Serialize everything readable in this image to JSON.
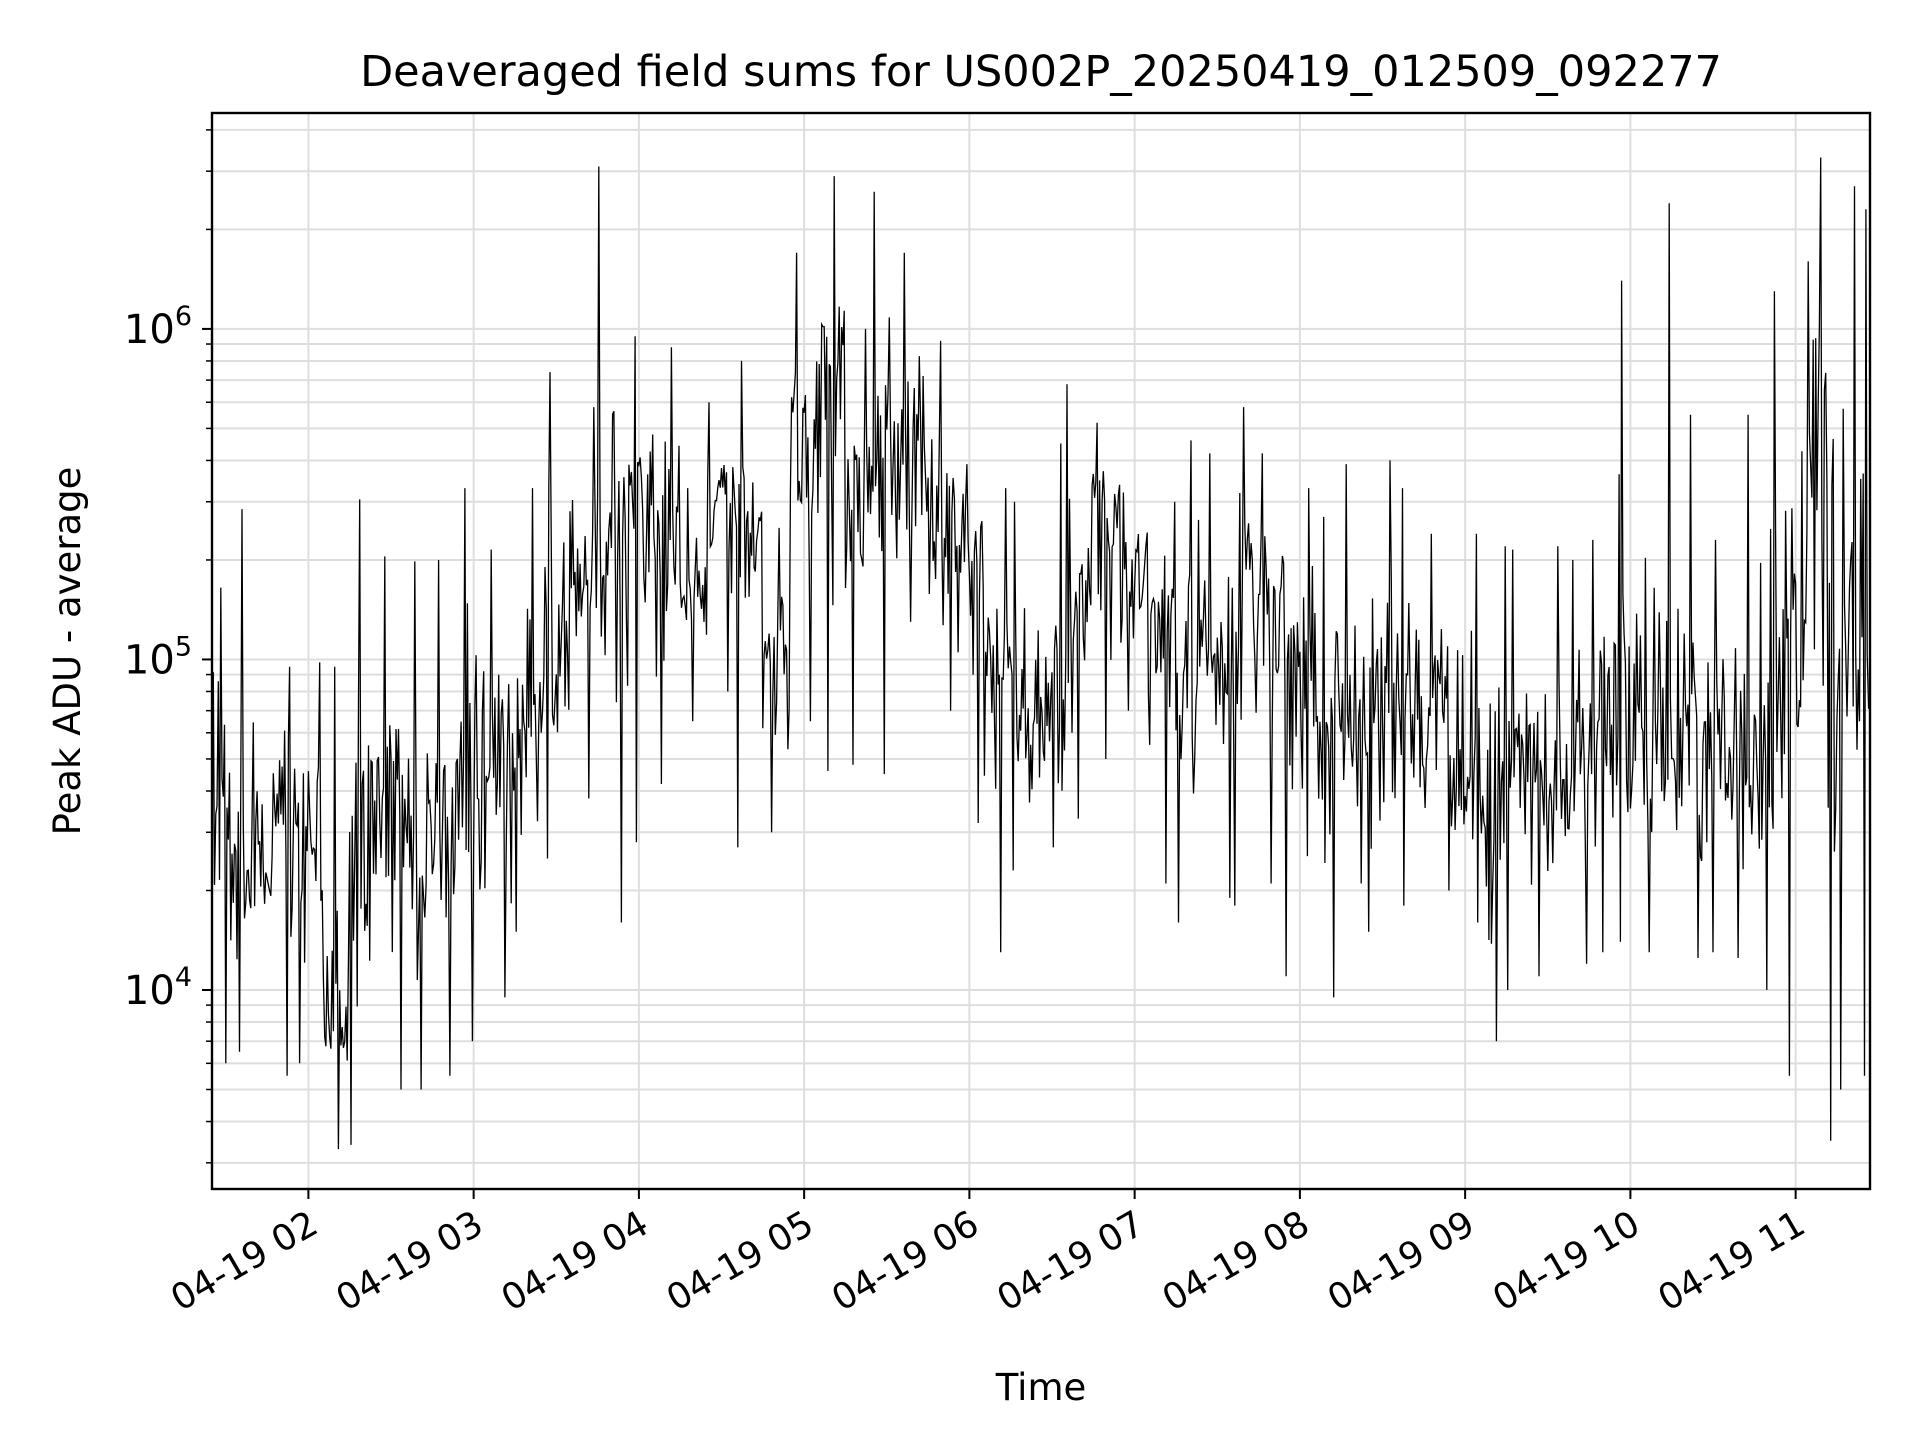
{
  "chart_data": {
    "type": "line",
    "title": "Deaveraged field sums for US002P_20250419_012509_092277",
    "xlabel": "Time",
    "ylabel": "Peak ADU - average",
    "y_scale": "log",
    "grid": true,
    "xlim": [
      "2025-04-19 01:25",
      "2025-04-19 11:27"
    ],
    "ylim": [
      2500,
      4500000
    ],
    "x_ticks": [
      {
        "value": "2025-04-19 02:00",
        "label": "04-19 02"
      },
      {
        "value": "2025-04-19 03:00",
        "label": "04-19 03"
      },
      {
        "value": "2025-04-19 04:00",
        "label": "04-19 04"
      },
      {
        "value": "2025-04-19 05:00",
        "label": "04-19 05"
      },
      {
        "value": "2025-04-19 06:00",
        "label": "04-19 06"
      },
      {
        "value": "2025-04-19 07:00",
        "label": "04-19 07"
      },
      {
        "value": "2025-04-19 08:00",
        "label": "04-19 08"
      },
      {
        "value": "2025-04-19 09:00",
        "label": "04-19 09"
      },
      {
        "value": "2025-04-19 10:00",
        "label": "04-19 10"
      },
      {
        "value": "2025-04-19 11:00",
        "label": "04-19 11"
      }
    ],
    "y_ticks": [
      {
        "value": 10000,
        "base": "10",
        "exp": "4"
      },
      {
        "value": 100000,
        "base": "10",
        "exp": "5"
      },
      {
        "value": 1000000,
        "base": "10",
        "exp": "6"
      }
    ],
    "series": [
      {
        "color": "#000000",
        "x": [
          "2025-04-19 01:25",
          "2025-04-19 01:35",
          "2025-04-19 01:45",
          "2025-04-19 01:55",
          "2025-04-19 02:05",
          "2025-04-19 02:15",
          "2025-04-19 02:25",
          "2025-04-19 02:35",
          "2025-04-19 02:45",
          "2025-04-19 02:55",
          "2025-04-19 03:05",
          "2025-04-19 03:15",
          "2025-04-19 03:25",
          "2025-04-19 03:35",
          "2025-04-19 03:45",
          "2025-04-19 03:55",
          "2025-04-19 04:05",
          "2025-04-19 04:15",
          "2025-04-19 04:25",
          "2025-04-19 04:35",
          "2025-04-19 04:45",
          "2025-04-19 04:55",
          "2025-04-19 05:05",
          "2025-04-19 05:15",
          "2025-04-19 05:25",
          "2025-04-19 05:35",
          "2025-04-19 05:45",
          "2025-04-19 05:55",
          "2025-04-19 06:05",
          "2025-04-19 06:15",
          "2025-04-19 06:25",
          "2025-04-19 06:35",
          "2025-04-19 06:45",
          "2025-04-19 06:55",
          "2025-04-19 07:05",
          "2025-04-19 07:15",
          "2025-04-19 07:25",
          "2025-04-19 07:35",
          "2025-04-19 07:45",
          "2025-04-19 07:55",
          "2025-04-19 08:05",
          "2025-04-19 08:15",
          "2025-04-19 08:25",
          "2025-04-19 08:35",
          "2025-04-19 08:45",
          "2025-04-19 08:55",
          "2025-04-19 09:05",
          "2025-04-19 09:15",
          "2025-04-19 09:25",
          "2025-04-19 09:35",
          "2025-04-19 09:45",
          "2025-04-19 09:55",
          "2025-04-19 10:05",
          "2025-04-19 10:15",
          "2025-04-19 10:25",
          "2025-04-19 10:35",
          "2025-04-19 10:45",
          "2025-04-19 10:55",
          "2025-04-19 11:05",
          "2025-04-19 11:15",
          "2025-04-19 11:25"
        ],
        "y": [
          30000,
          25000,
          35000,
          30000,
          8000,
          20000,
          40000,
          25000,
          30000,
          40000,
          50000,
          70000,
          90000,
          200000,
          250000,
          350000,
          250000,
          150000,
          300000,
          250000,
          100000,
          400000,
          700000,
          350000,
          400000,
          500000,
          300000,
          250000,
          100000,
          70000,
          60000,
          150000,
          300000,
          200000,
          130000,
          90000,
          100000,
          140000,
          150000,
          90000,
          60000,
          70000,
          80000,
          70000,
          70000,
          40000,
          35000,
          45000,
          40000,
          50000,
          60000,
          65000,
          60000,
          55000,
          50000,
          45000,
          60000,
          110000,
          300000,
          150000,
          80000
        ],
        "y_low": [
          6000,
          6500,
          5500,
          6000,
          3300,
          3400,
          5000,
          5000,
          5500,
          7000,
          9500,
          15000,
          25000,
          38000,
          16000,
          28000,
          42000,
          65000,
          80000,
          27000,
          30000,
          65000,
          46000,
          48000,
          45000,
          130000,
          70000,
          32000,
          13000,
          23000,
          27000,
          33000,
          50000,
          70000,
          21000,
          16000,
          19000,
          18000,
          21000,
          11000,
          9500,
          21000,
          15000,
          18000,
          20000,
          16000,
          7000,
          10000,
          11000,
          12000,
          13000,
          14000,
          13000,
          12500,
          13000,
          12500,
          10000,
          5500,
          3500,
          5000,
          5500
        ],
        "y_high": [
          165000,
          285000,
          95000,
          98000,
          95000,
          305000,
          205000,
          198000,
          200000,
          330000,
          215000,
          330000,
          740000,
          580000,
          3100000,
          950000,
          880000,
          330000,
          600000,
          800000,
          250000,
          1700000,
          2900000,
          1000000,
          2600000,
          1700000,
          920000,
          390000,
          330000,
          300000,
          450000,
          680000,
          520000,
          320000,
          300000,
          460000,
          420000,
          580000,
          420000,
          330000,
          270000,
          390000,
          400000,
          330000,
          240000,
          240000,
          220000,
          215000,
          220000,
          200000,
          230000,
          1400000,
          2400000,
          550000,
          230000,
          550000,
          1300000,
          1600000,
          3300000,
          2700000,
          2300000
        ]
      }
    ]
  }
}
